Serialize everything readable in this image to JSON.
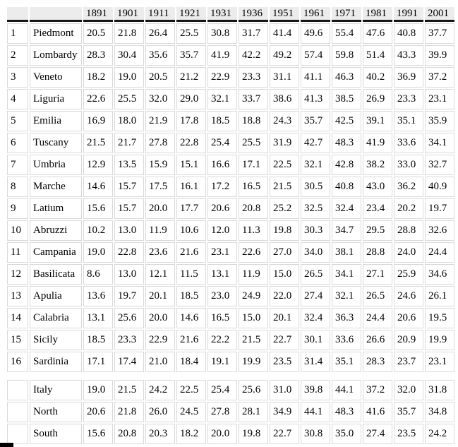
{
  "colors": {
    "header_bg": "#ececec",
    "header_rule": "#161616",
    "cell_border": "#d9d9d9",
    "text": "#000000"
  },
  "chart_data": {
    "type": "table",
    "years": [
      "1891",
      "1901",
      "1911",
      "1921",
      "1931",
      "1936",
      "1951",
      "1961",
      "1971",
      "1981",
      "1991",
      "2001"
    ],
    "rows": [
      {
        "num": "1",
        "region": "Piedmont",
        "values": [
          "20.5",
          "21.8",
          "26.4",
          "25.5",
          "30.8",
          "31.7",
          "41.4",
          "49.6",
          "55.4",
          "47.6",
          "40.8",
          "37.7"
        ]
      },
      {
        "num": "2",
        "region": "Lombardy",
        "values": [
          "28.3",
          "30.4",
          "35.6",
          "35.7",
          "41.9",
          "42.2",
          "49.2",
          "57.4",
          "59.8",
          "51.4",
          "43.3",
          "39.9"
        ]
      },
      {
        "num": "3",
        "region": "Veneto",
        "values": [
          "18.2",
          "19.0",
          "20.5",
          "21.2",
          "22.9",
          "23.3",
          "31.1",
          "41.1",
          "46.3",
          "40.2",
          "36.9",
          "37.2"
        ]
      },
      {
        "num": "4",
        "region": "Liguria",
        "values": [
          "22.6",
          "25.5",
          "32.0",
          "29.0",
          "32.1",
          "33.7",
          "38.6",
          "41.3",
          "38.5",
          "26.9",
          "23.3",
          "23.1"
        ]
      },
      {
        "num": "5",
        "region": "Emilia",
        "values": [
          "16.9",
          "18.0",
          "21.9",
          "17.8",
          "18.5",
          "18.8",
          "24.3",
          "35.7",
          "42.5",
          "39.1",
          "35.1",
          "35.9"
        ]
      },
      {
        "num": "6",
        "region": "Tuscany",
        "values": [
          "21.5",
          "21.7",
          "27.8",
          "22.8",
          "25.4",
          "25.5",
          "31.9",
          "42.7",
          "48.3",
          "41.9",
          "33.6",
          "34.1"
        ]
      },
      {
        "num": "7",
        "region": "Umbria",
        "values": [
          "12.9",
          "13.5",
          "15.9",
          "15.1",
          "16.6",
          "17.1",
          "22.5",
          "32.1",
          "42.8",
          "38.2",
          "33.0",
          "32.7"
        ]
      },
      {
        "num": "8",
        "region": "Marche",
        "values": [
          "14.6",
          "15.7",
          "17.5",
          "16.1",
          "17.2",
          "16.5",
          "21.5",
          "30.5",
          "40.8",
          "43.0",
          "36.2",
          "40.9"
        ]
      },
      {
        "num": "9",
        "region": "Latium",
        "values": [
          "15.6",
          "15.7",
          "20.0",
          "17.7",
          "20.6",
          "20.8",
          "25.2",
          "32.5",
          "32.4",
          "23.4",
          "20.2",
          "19.7"
        ]
      },
      {
        "num": "10",
        "region": "Abruzzi",
        "values": [
          "10.2",
          "13.0",
          "11.9",
          "10.6",
          "12.0",
          "11.3",
          "19.8",
          "30.3",
          "34.7",
          "29.5",
          "28.8",
          "32.6"
        ]
      },
      {
        "num": "11",
        "region": "Campania",
        "values": [
          "19.0",
          "22.8",
          "23.6",
          "21.6",
          "23.1",
          "22.6",
          "27.0",
          "34.0",
          "38.1",
          "28.8",
          "24.0",
          "24.4"
        ]
      },
      {
        "num": "12",
        "region": "Basilicata",
        "values": [
          "8.6",
          "13.0",
          "12.1",
          "11.5",
          "13.1",
          "11.9",
          "15.0",
          "26.5",
          "34.1",
          "27.1",
          "25.9",
          "34.6"
        ]
      },
      {
        "num": "13",
        "region": "Apulia",
        "values": [
          "13.6",
          "19.7",
          "20.1",
          "18.5",
          "23.0",
          "24.9",
          "22.0",
          "27.4",
          "32.1",
          "26.5",
          "24.6",
          "26.1"
        ]
      },
      {
        "num": "14",
        "region": "Calabria",
        "values": [
          "13.1",
          "25.6",
          "20.0",
          "14.6",
          "16.5",
          "15.0",
          "20.1",
          "32.4",
          "36.3",
          "24.4",
          "20.6",
          "19.5"
        ]
      },
      {
        "num": "15",
        "region": "Sicily",
        "values": [
          "18.5",
          "23.3",
          "22.9",
          "21.6",
          "22.2",
          "21.5",
          "22.7",
          "30.1",
          "33.6",
          "26.6",
          "20.9",
          "19.9"
        ]
      },
      {
        "num": "16",
        "region": "Sardinia",
        "values": [
          "17.1",
          "17.4",
          "21.0",
          "18.4",
          "19.1",
          "19.9",
          "23.5",
          "31.4",
          "35.1",
          "28.3",
          "23.7",
          "23.1"
        ]
      }
    ],
    "summary_rows": [
      {
        "num": "",
        "region": "Italy",
        "values": [
          "19.0",
          "21.5",
          "24.2",
          "22.5",
          "25.4",
          "25.6",
          "31.0",
          "39.8",
          "44.1",
          "37.2",
          "32.0",
          "31.8"
        ]
      },
      {
        "num": "",
        "region": "North",
        "values": [
          "20.6",
          "21.8",
          "26.0",
          "24.5",
          "27.8",
          "28.1",
          "34.9",
          "44.1",
          "48.3",
          "41.6",
          "35.7",
          "34.8"
        ]
      },
      {
        "num": "",
        "region": "South",
        "values": [
          "15.6",
          "20.8",
          "20.3",
          "18.2",
          "20.0",
          "19.8",
          "22.7",
          "30.8",
          "35.0",
          "27.4",
          "23.5",
          "24.2"
        ]
      }
    ]
  }
}
